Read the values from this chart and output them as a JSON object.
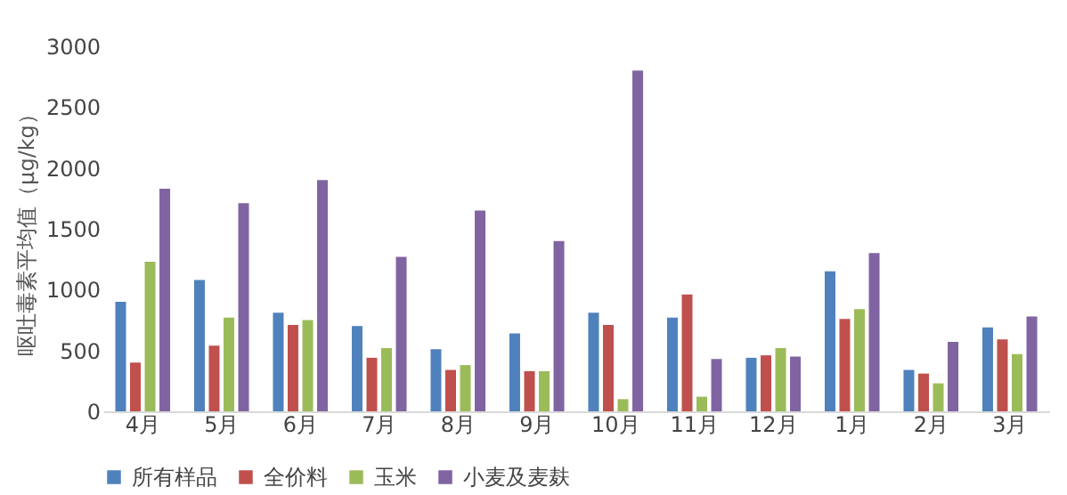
{
  "chart_data": {
    "type": "bar",
    "ylabel": "呕吐毒素平均值（μg/kg）",
    "categories": [
      "4月",
      "5月",
      "6月",
      "7月",
      "8月",
      "9月",
      "10月",
      "11月",
      "12月",
      "1月",
      "2月",
      "3月"
    ],
    "series": [
      {
        "name": "所有样品",
        "color": "#4f81bd",
        "values": [
          900,
          1080,
          810,
          700,
          510,
          640,
          810,
          770,
          440,
          1150,
          340,
          690
        ]
      },
      {
        "name": "全价料",
        "color": "#c0504d",
        "values": [
          400,
          540,
          710,
          440,
          340,
          330,
          710,
          960,
          460,
          760,
          310,
          590
        ]
      },
      {
        "name": "玉米",
        "color": "#9bbb59",
        "values": [
          1230,
          770,
          750,
          520,
          380,
          330,
          100,
          120,
          520,
          840,
          230,
          470
        ]
      },
      {
        "name": "小麦及麦麸",
        "color": "#8064a2",
        "values": [
          1830,
          1710,
          1900,
          1270,
          1650,
          1400,
          2800,
          430,
          450,
          1300,
          570,
          780
        ]
      }
    ],
    "ylim": [
      0,
      3000
    ],
    "yticks": [
      0,
      500,
      1000,
      1500,
      2000,
      2500,
      3000
    ],
    "grid": false,
    "legend": "bottom"
  }
}
